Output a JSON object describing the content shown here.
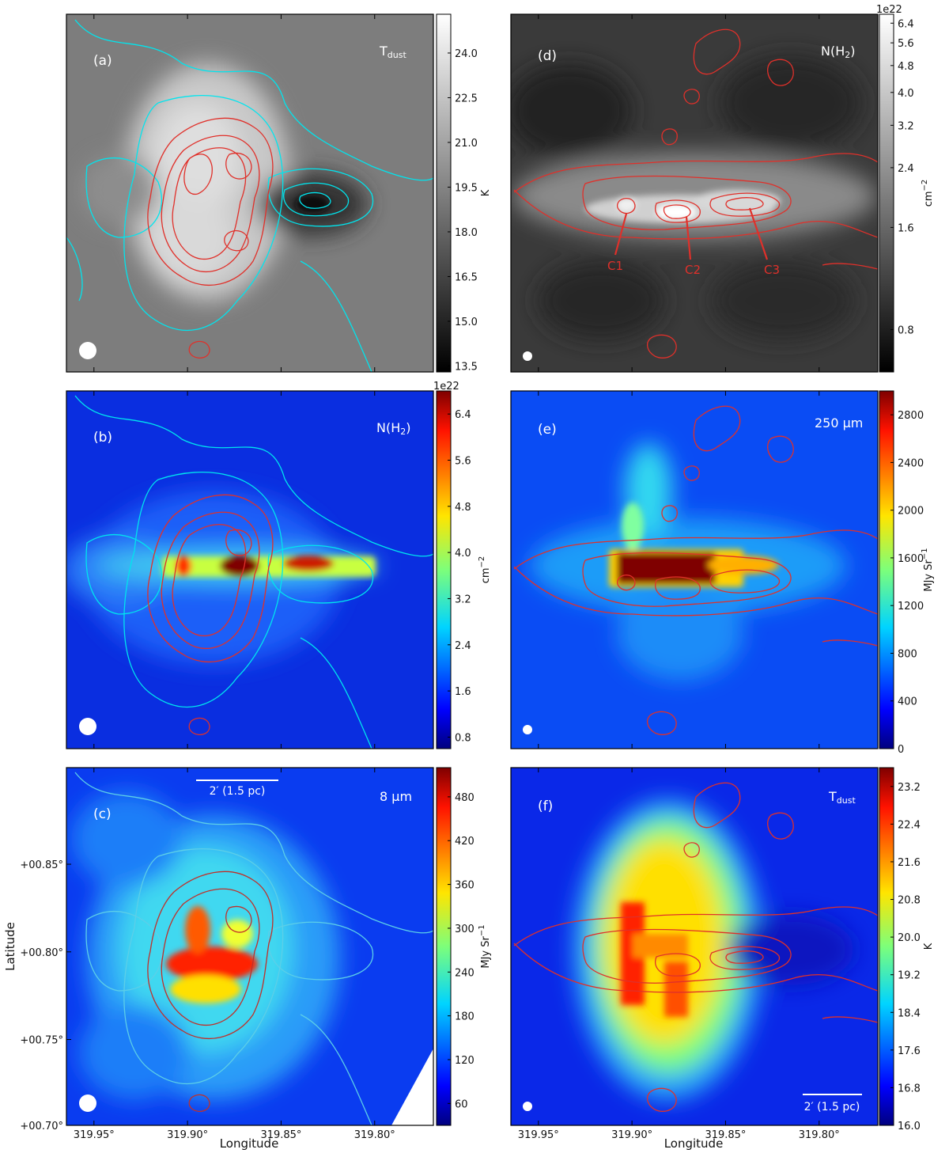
{
  "chart_data": [
    {
      "type": "heatmap",
      "panel": "(a)",
      "map_label": "T",
      "map_label_sub": "dust",
      "colormap": "gray",
      "colorbar": {
        "unit": "K",
        "ticks": [
          "24.0",
          "22.5",
          "21.0",
          "19.5",
          "18.0",
          "16.5",
          "15.0",
          "13.5"
        ],
        "range": [
          13.3,
          25.3
        ],
        "exponent": ""
      },
      "contours": [
        {
          "color": "#00e5ee",
          "levels": 4
        },
        {
          "color": "#e0302a",
          "levels": 5
        }
      ],
      "beam": "circle",
      "xticks": [
        "319.95°",
        "319.90°",
        "319.85°",
        "319.80°"
      ],
      "yticks": [],
      "xlabel": "",
      "ylabel": ""
    },
    {
      "type": "heatmap",
      "panel": "(b)",
      "map_label": "N(H",
      "map_label_sub": "2",
      "map_label_end": ")",
      "colormap": "jet",
      "colorbar": {
        "unit": "cm",
        "unit_sup": "−2",
        "ticks": [
          "6.4",
          "5.6",
          "4.8",
          "4.0",
          "3.2",
          "2.4",
          "1.6",
          "0.8"
        ],
        "range": [
          0.6,
          6.8
        ],
        "exponent": "1e22"
      },
      "contours": [
        {
          "color": "#00e5ee",
          "levels": 4
        },
        {
          "color": "#e0302a",
          "levels": 5
        }
      ],
      "beam": "circle",
      "xticks": [
        "319.95°",
        "319.90°",
        "319.85°",
        "319.80°"
      ],
      "yticks": [],
      "xlabel": "",
      "ylabel": ""
    },
    {
      "type": "heatmap",
      "panel": "(c)",
      "map_label": "8 μm",
      "colormap": "jet",
      "colorbar": {
        "unit": "MJy Sr",
        "unit_sup": "−1",
        "ticks": [
          "480",
          "420",
          "360",
          "300",
          "240",
          "180",
          "120",
          "60"
        ],
        "range": [
          30,
          520
        ],
        "exponent": ""
      },
      "contours": [
        {
          "color": "#00e5ee",
          "levels": 4
        },
        {
          "color": "#e0302a",
          "levels": 5
        }
      ],
      "beam": "circle",
      "scalebar": "2′ (1.5 pc)",
      "xticks": [
        "319.95°",
        "319.90°",
        "319.85°",
        "319.80°"
      ],
      "yticks": [
        "+00.85°",
        "+00.80°",
        "+00.75°",
        "+00.70°"
      ],
      "xlabel": "Longitude",
      "ylabel": "Latitude"
    },
    {
      "type": "heatmap",
      "panel": "(d)",
      "map_label": "N(H",
      "map_label_sub": "2",
      "map_label_end": ")",
      "colormap": "gray",
      "colorbar": {
        "unit": "cm",
        "unit_sup": "−2",
        "ticks": [
          "6.4",
          "5.6",
          "4.8",
          "4.0",
          "3.2",
          "2.4",
          "1.6",
          "0.8"
        ],
        "range": [
          0.6,
          6.8
        ],
        "exponent": "1e22"
      },
      "contours": [
        {
          "color": "#e0302a",
          "levels": 4
        }
      ],
      "cores": [
        "C1",
        "C2",
        "C3"
      ],
      "beam": "circle",
      "xticks": [
        "319.95°",
        "319.90°",
        "319.85°",
        "319.80°"
      ],
      "yticks": [],
      "xlabel": "",
      "ylabel": ""
    },
    {
      "type": "heatmap",
      "panel": "(e)",
      "map_label": "250 μm",
      "colormap": "jet",
      "colorbar": {
        "unit": "MJy Sr",
        "unit_sup": "−1",
        "ticks": [
          "2800",
          "2400",
          "2000",
          "1600",
          "1200",
          "800",
          "400",
          "0"
        ],
        "range": [
          0,
          3000
        ],
        "exponent": ""
      },
      "contours": [
        {
          "color": "#e0302a",
          "levels": 4
        }
      ],
      "beam": "circle",
      "xticks": [
        "319.95°",
        "319.90°",
        "319.85°",
        "319.80°"
      ],
      "yticks": [],
      "xlabel": "",
      "ylabel": ""
    },
    {
      "type": "heatmap",
      "panel": "(f)",
      "map_label": "T",
      "map_label_sub": "dust",
      "colormap": "jet",
      "colorbar": {
        "unit": "K",
        "ticks": [
          "23.2",
          "22.4",
          "21.6",
          "20.8",
          "20.0",
          "19.2",
          "18.4",
          "17.6",
          "16.8",
          "16.0"
        ],
        "range": [
          16.0,
          23.6
        ],
        "exponent": ""
      },
      "contours": [
        {
          "color": "#e0302a",
          "levels": 4
        }
      ],
      "beam": "circle",
      "scalebar": "2′ (1.5 pc)",
      "xticks": [
        "319.95°",
        "319.90°",
        "319.85°",
        "319.80°"
      ],
      "yticks": [],
      "xlabel": "Longitude",
      "ylabel": ""
    }
  ]
}
